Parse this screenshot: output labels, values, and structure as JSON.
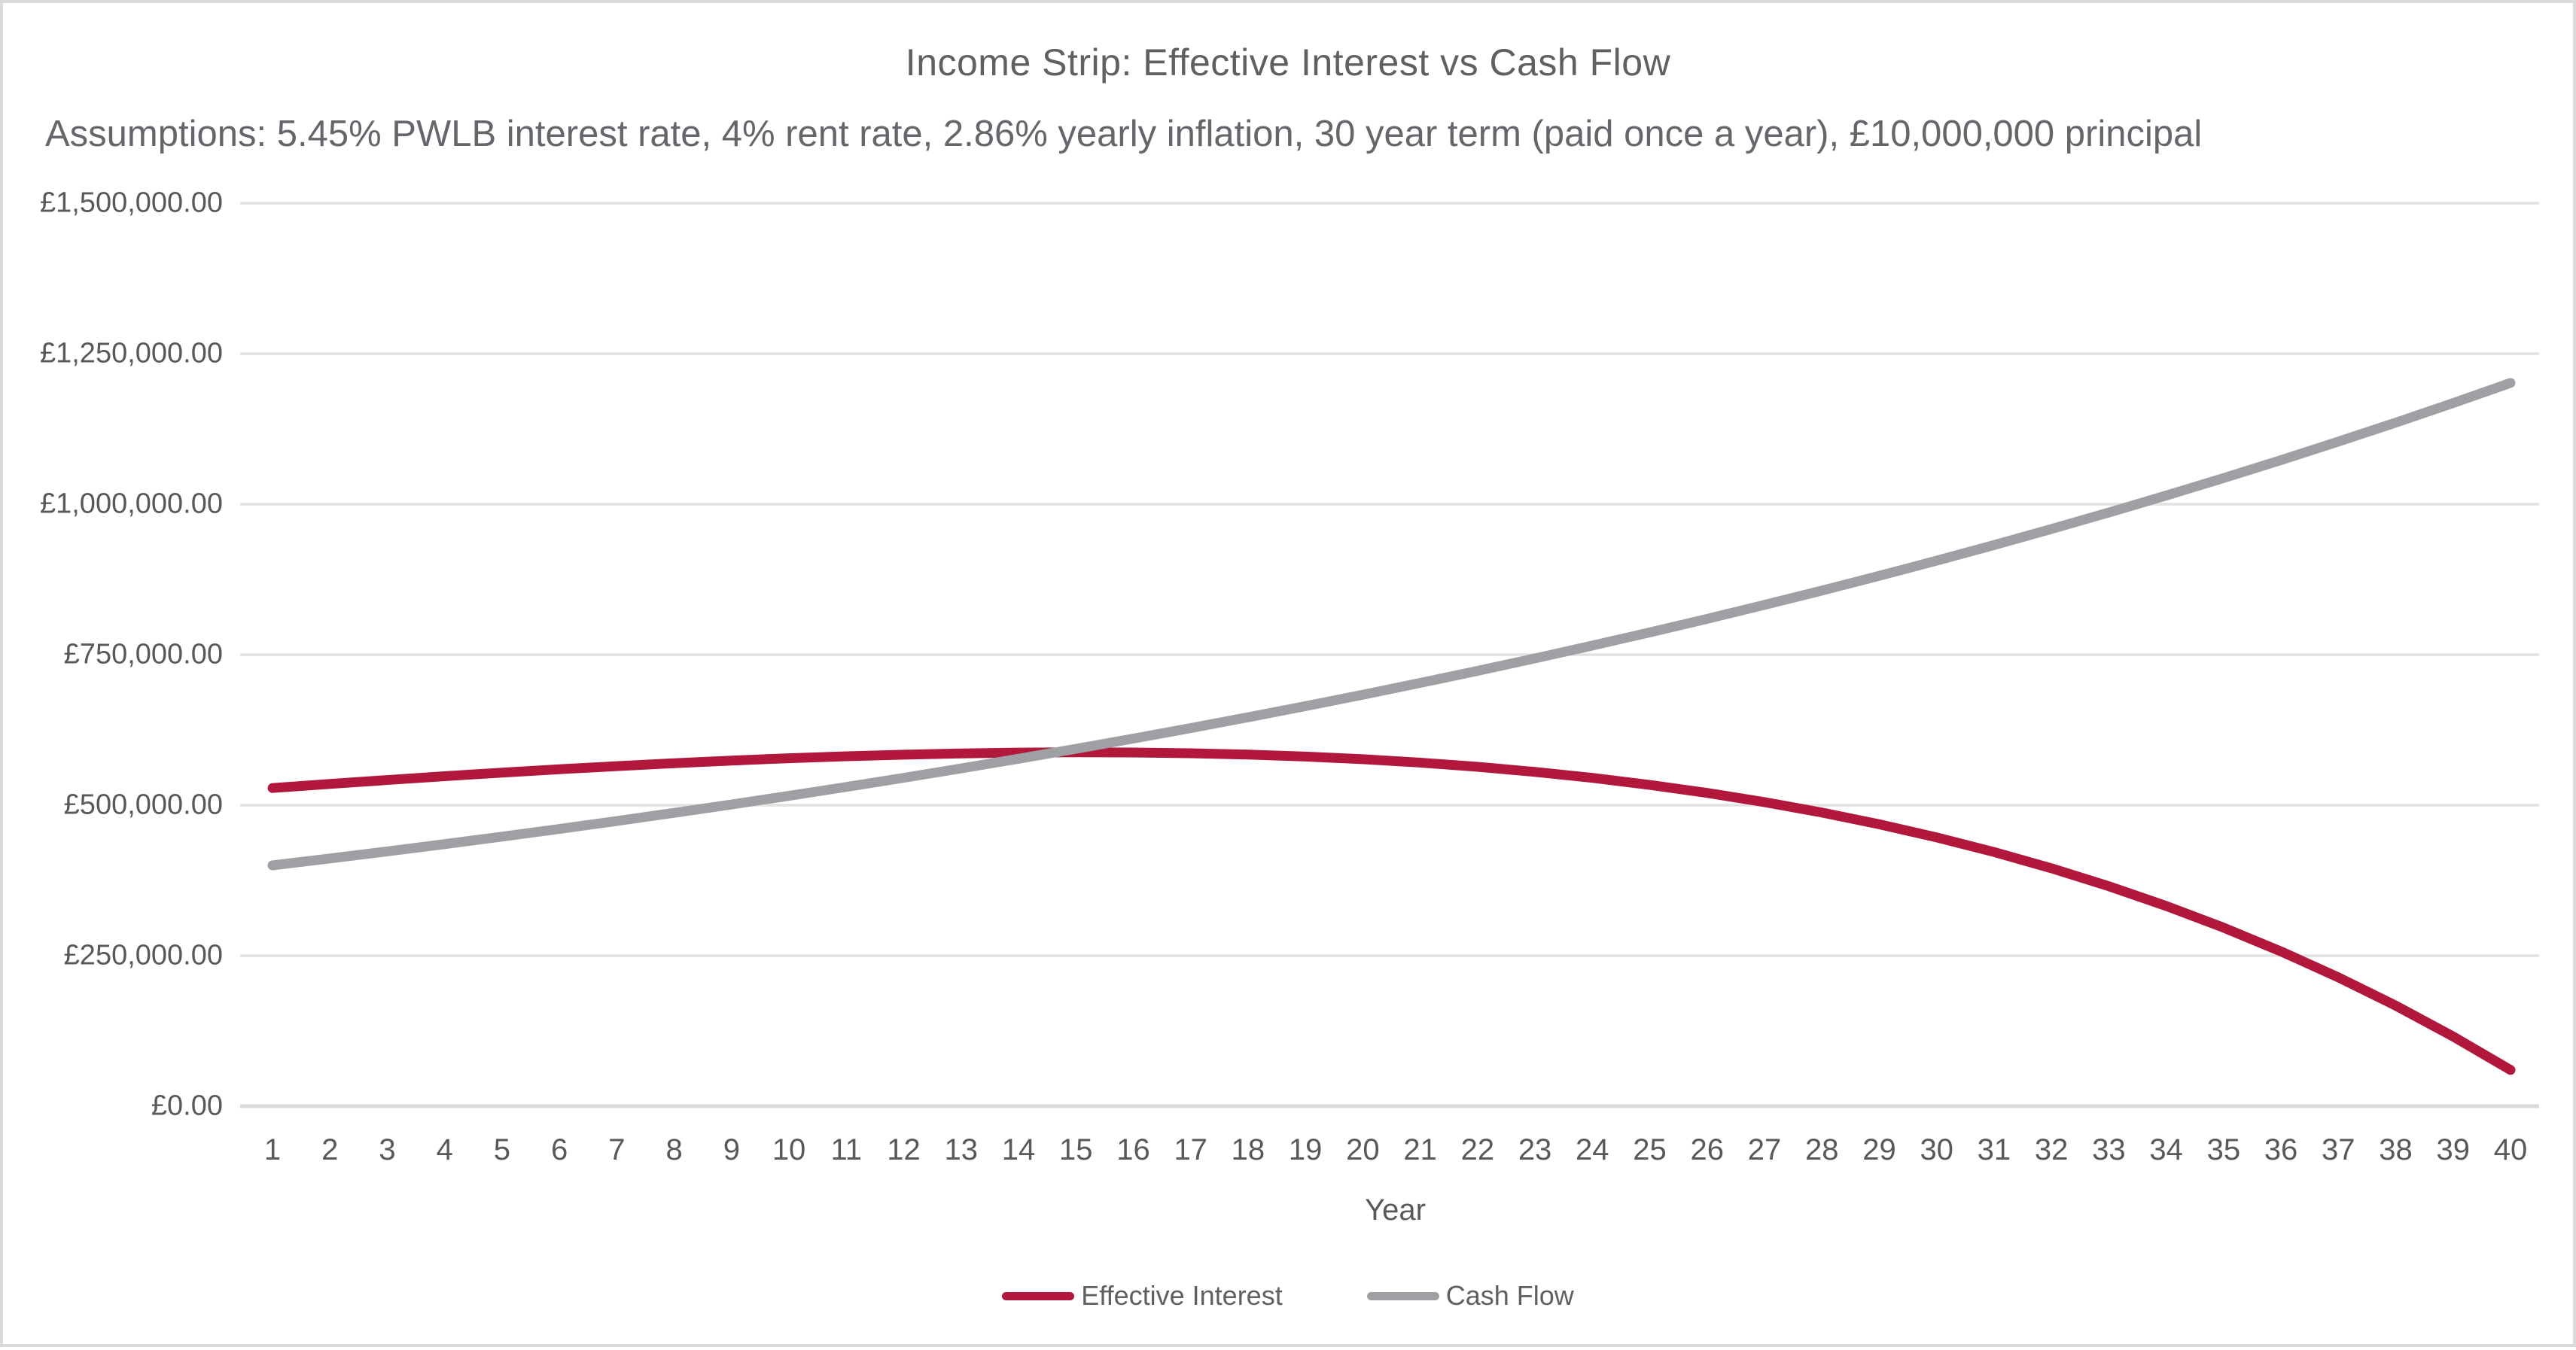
{
  "chart": {
    "title": "Income Strip: Effective Interest vs Cash Flow",
    "subtitle": "Assumptions: 5.45% PWLB interest rate, 4% rent rate, 2.86% yearly inflation, 30 year term (paid once a year), £10,000,000 principal"
  },
  "chart_data": {
    "type": "line",
    "title": "Income Strip: Effective Interest vs Cash Flow",
    "subtitle": "Assumptions: 5.45% PWLB interest rate, 4% rent rate, 2.86% yearly inflation, 30 year term (paid once a year), £10,000,000 principal",
    "xlabel": "Year",
    "ylabel": "",
    "x": [
      1,
      2,
      3,
      4,
      5,
      6,
      7,
      8,
      9,
      10,
      11,
      12,
      13,
      14,
      15,
      16,
      17,
      18,
      19,
      20,
      21,
      22,
      23,
      24,
      25,
      26,
      27,
      28,
      29,
      30,
      31,
      32,
      33,
      34,
      35,
      36,
      37,
      38,
      39,
      40
    ],
    "ylim": [
      0,
      1500000
    ],
    "ytick_values": [
      0,
      250000,
      500000,
      750000,
      1000000,
      1250000,
      1500000
    ],
    "ytick_labels": [
      "£0.00",
      "£250,000.00",
      "£500,000.00",
      "£750,000.00",
      "£1,000,000.00",
      "£1,250,000.00",
      "£1,500,000.00"
    ],
    "grid": "horizontal",
    "legend_position": "bottom",
    "series": [
      {
        "name": "Effective Interest",
        "color": "#b2173c",
        "values": [
          528500,
          535300,
          541800,
          548100,
          554100,
          559700,
          564900,
          569700,
          574100,
          578000,
          581200,
          583900,
          586000,
          587300,
          587800,
          587500,
          586300,
          584100,
          580800,
          576400,
          570700,
          563700,
          555300,
          545400,
          533700,
          520400,
          505100,
          487800,
          468300,
          446500,
          422200,
          395200,
          365400,
          332600,
          296600,
          257100,
          214000,
          167000,
          115800,
          60200
        ]
      },
      {
        "name": "Cash Flow",
        "color": "#9ea0a3",
        "values": [
          400000,
          411440,
          423207,
          435311,
          447761,
          460567,
          473739,
          487288,
          501225,
          515560,
          530305,
          545471,
          561072,
          577119,
          593624,
          610602,
          628065,
          646028,
          664504,
          683509,
          703057,
          723165,
          743847,
          765121,
          787004,
          809512,
          832664,
          856478,
          880974,
          906169,
          932086,
          958743,
          986163,
          1014367,
          1043378,
          1073219,
          1103913,
          1135485,
          1167960,
          1201364
        ]
      }
    ],
    "colors": {
      "grid_line": "#e2e2e2",
      "axis_line": "#d9d9d9",
      "text": "#595959"
    }
  }
}
